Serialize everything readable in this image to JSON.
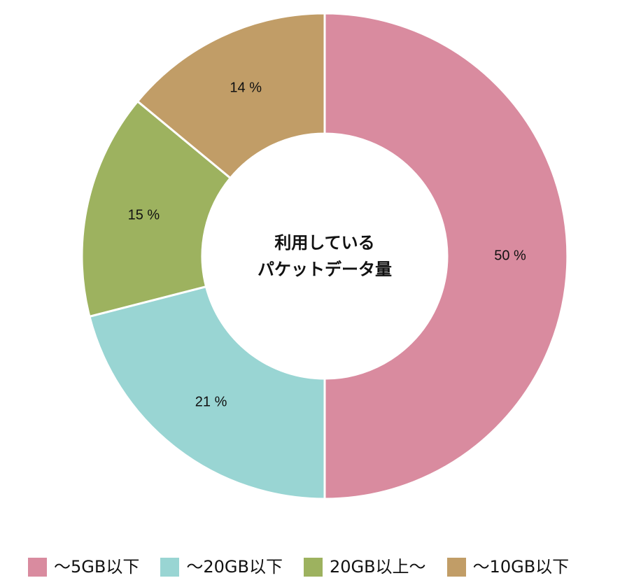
{
  "chart_data": {
    "type": "pie",
    "subtype": "donut",
    "title": "",
    "center_text": [
      "利用している",
      "パケットデータ量"
    ],
    "unit": "%",
    "slices": [
      {
        "label": "〜5GB以下",
        "value": 50,
        "display": "50 %",
        "color": "#d98b9f"
      },
      {
        "label": "〜20GB以下",
        "value": 21,
        "display": "21 %",
        "color": "#99d5d3"
      },
      {
        "label": "20GB以上〜",
        "value": 15,
        "display": "15 %",
        "color": "#9db25f"
      },
      {
        "label": "〜10GB以下",
        "value": 14,
        "display": "14 %",
        "color": "#c19d67"
      }
    ],
    "legend_position": "bottom",
    "start_angle": "top",
    "direction": "clockwise"
  }
}
